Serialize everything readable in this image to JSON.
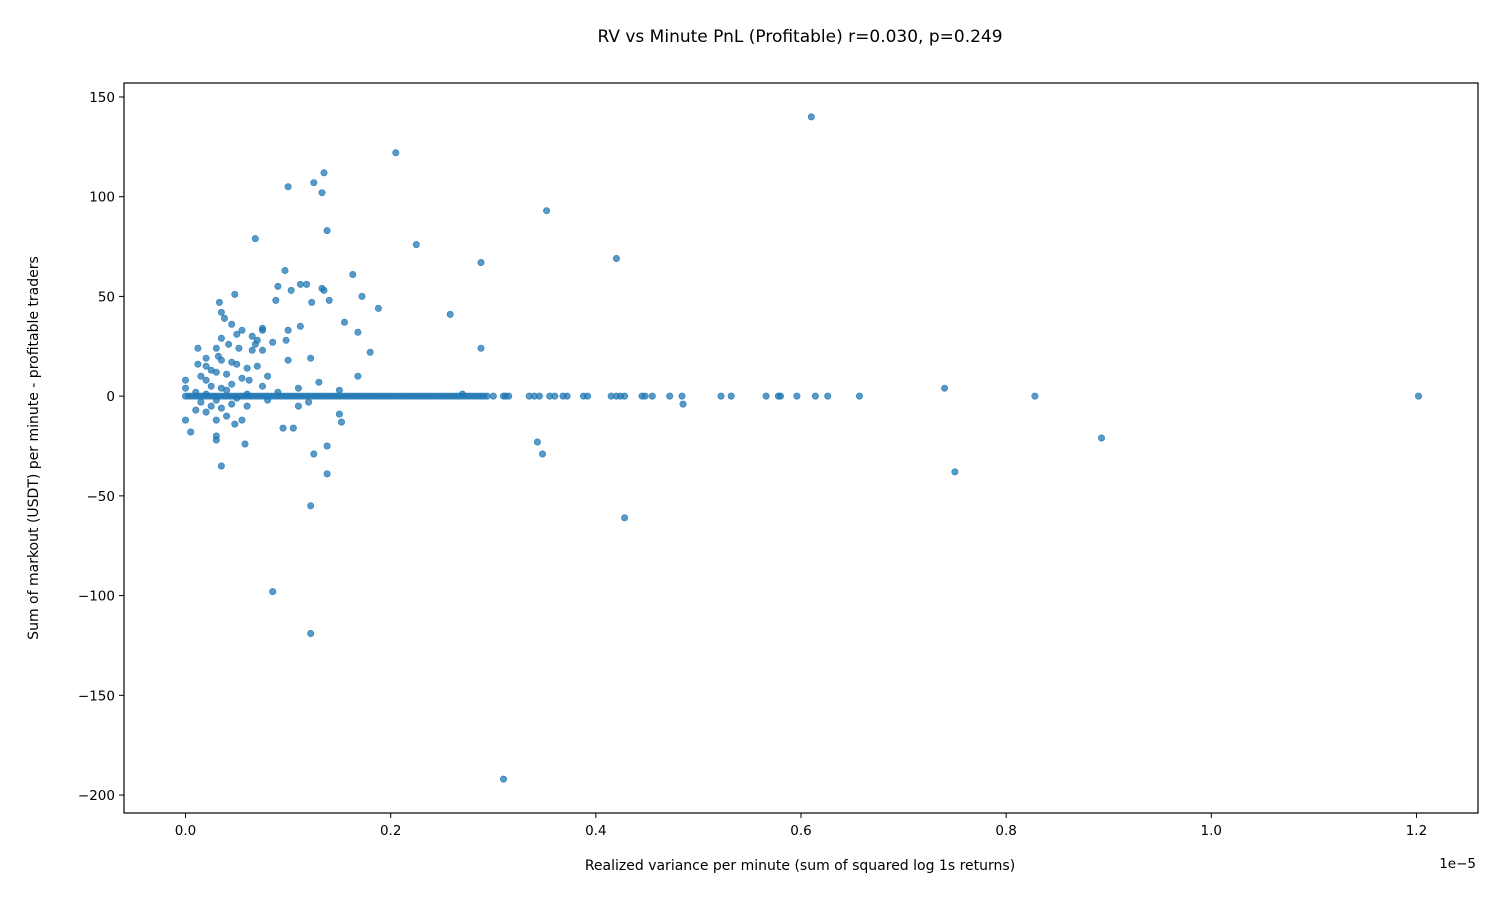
{
  "chart_data": {
    "type": "scatter",
    "title": "RV vs Minute PnL (Profitable) r=0.030, p=0.249",
    "xlabel": "Realized variance per minute (sum of squared log 1s returns)",
    "ylabel": "Sum of markout (USDT) per minute - profitable traders",
    "x_offset_text": "1e−5",
    "xlim": [
      -0.06,
      1.26
    ],
    "ylim": [
      -209,
      157
    ],
    "x_ticks": [
      0.0,
      0.2,
      0.4,
      0.6,
      0.8,
      1.0,
      1.2
    ],
    "x_tick_labels": [
      "0.0",
      "0.2",
      "0.4",
      "0.6",
      "0.8",
      "1.0",
      "1.2"
    ],
    "y_ticks": [
      150,
      100,
      50,
      0,
      -50,
      -100,
      -150,
      -200
    ],
    "y_tick_labels": [
      "150",
      "100",
      "50",
      "0",
      "−50",
      "−100",
      "−150",
      "−200"
    ],
    "grid": false,
    "point_color": "#1f77b4",
    "point_alpha": 0.75,
    "series": [
      {
        "points": [
          [
            0.61,
            140
          ],
          [
            0.205,
            122
          ],
          [
            0.135,
            112
          ],
          [
            0.125,
            107
          ],
          [
            0.1,
            105
          ],
          [
            0.133,
            102
          ],
          [
            0.352,
            93
          ],
          [
            0.138,
            83
          ],
          [
            0.068,
            79
          ],
          [
            0.225,
            76
          ],
          [
            0.42,
            69
          ],
          [
            0.288,
            67
          ],
          [
            0.097,
            63
          ],
          [
            0.163,
            61
          ],
          [
            0.112,
            56
          ],
          [
            0.118,
            56
          ],
          [
            0.09,
            55
          ],
          [
            0.133,
            54
          ],
          [
            0.135,
            53
          ],
          [
            0.103,
            53
          ],
          [
            0.048,
            51
          ],
          [
            0.172,
            50
          ],
          [
            0.088,
            48
          ],
          [
            0.033,
            47
          ],
          [
            0.123,
            47
          ],
          [
            0.14,
            48
          ],
          [
            0.188,
            44
          ],
          [
            0.035,
            42
          ],
          [
            0.258,
            41
          ],
          [
            0.038,
            39
          ],
          [
            0.155,
            37
          ],
          [
            0.045,
            36
          ],
          [
            0.112,
            35
          ],
          [
            0.075,
            34
          ],
          [
            0.075,
            33
          ],
          [
            0.055,
            33
          ],
          [
            0.168,
            32
          ],
          [
            0.1,
            33
          ],
          [
            0.065,
            30
          ],
          [
            0.05,
            31
          ],
          [
            0.035,
            29
          ],
          [
            0.07,
            28
          ],
          [
            0.098,
            28
          ],
          [
            0.042,
            26
          ],
          [
            0.068,
            26
          ],
          [
            0.085,
            27
          ],
          [
            0.065,
            23
          ],
          [
            0.03,
            24
          ],
          [
            0.012,
            24
          ],
          [
            0.052,
            24
          ],
          [
            0.075,
            23
          ],
          [
            0.288,
            24
          ],
          [
            0.18,
            22
          ],
          [
            0.032,
            20
          ],
          [
            0.02,
            19
          ],
          [
            0.1,
            18
          ],
          [
            0.035,
            18
          ],
          [
            0.122,
            19
          ],
          [
            0.045,
            17
          ],
          [
            0.05,
            16
          ],
          [
            0.07,
            15
          ],
          [
            0.012,
            16
          ],
          [
            0.02,
            15
          ],
          [
            0.06,
            14
          ],
          [
            0.025,
            13
          ],
          [
            0.03,
            12
          ],
          [
            0.04,
            11
          ],
          [
            0.015,
            10
          ],
          [
            0.08,
            10
          ],
          [
            0.168,
            10
          ],
          [
            0.055,
            9
          ],
          [
            0.02,
            8
          ],
          [
            0.0,
            8
          ],
          [
            0.062,
            8
          ],
          [
            0.13,
            7
          ],
          [
            0.045,
            6
          ],
          [
            0.025,
            5
          ],
          [
            0.035,
            4
          ],
          [
            0.0,
            4
          ],
          [
            0.075,
            5
          ],
          [
            0.11,
            4
          ],
          [
            0.74,
            4
          ],
          [
            0.27,
            1
          ],
          [
            0.01,
            2
          ],
          [
            0.04,
            3
          ],
          [
            0.09,
            2
          ],
          [
            0.15,
            3
          ],
          [
            0.06,
            1
          ],
          [
            0.02,
            1
          ],
          [
            0.05,
            -1
          ],
          [
            0.03,
            -2
          ],
          [
            0.015,
            -3
          ],
          [
            0.08,
            -2
          ],
          [
            0.12,
            -3
          ],
          [
            0.045,
            -4
          ],
          [
            0.025,
            -5
          ],
          [
            0.06,
            -5
          ],
          [
            0.11,
            -5
          ],
          [
            0.485,
            -4
          ],
          [
            0.035,
            -6
          ],
          [
            0.01,
            -7
          ],
          [
            0.02,
            -8
          ],
          [
            0.15,
            -9
          ],
          [
            0.04,
            -10
          ],
          [
            0.055,
            -12
          ],
          [
            0.03,
            -12
          ],
          [
            0.152,
            -13
          ],
          [
            0.048,
            -14
          ],
          [
            0.0,
            -12
          ],
          [
            0.095,
            -16
          ],
          [
            0.105,
            -16
          ],
          [
            0.005,
            -18
          ],
          [
            0.03,
            -20
          ],
          [
            0.03,
            -22
          ],
          [
            0.343,
            -23
          ],
          [
            0.058,
            -24
          ],
          [
            0.138,
            -25
          ],
          [
            0.125,
            -29
          ],
          [
            0.348,
            -29
          ],
          [
            0.035,
            -35
          ],
          [
            0.138,
            -39
          ],
          [
            0.75,
            -38
          ],
          [
            0.893,
            -21
          ],
          [
            0.122,
            -55
          ],
          [
            0.428,
            -61
          ],
          [
            0.085,
            -98
          ],
          [
            0.122,
            -119
          ],
          [
            0.31,
            -192
          ],
          [
            0.0,
            0
          ],
          [
            0.003,
            0
          ],
          [
            0.006,
            0
          ],
          [
            0.009,
            0
          ],
          [
            0.012,
            0
          ],
          [
            0.015,
            0
          ],
          [
            0.018,
            0
          ],
          [
            0.021,
            0
          ],
          [
            0.024,
            0
          ],
          [
            0.027,
            0
          ],
          [
            0.03,
            0
          ],
          [
            0.033,
            0
          ],
          [
            0.036,
            0
          ],
          [
            0.039,
            0
          ],
          [
            0.042,
            0
          ],
          [
            0.045,
            0
          ],
          [
            0.048,
            0
          ],
          [
            0.051,
            0
          ],
          [
            0.054,
            0
          ],
          [
            0.057,
            0
          ],
          [
            0.06,
            0
          ],
          [
            0.063,
            0
          ],
          [
            0.066,
            0
          ],
          [
            0.069,
            0
          ],
          [
            0.072,
            0
          ],
          [
            0.075,
            0
          ],
          [
            0.078,
            0
          ],
          [
            0.081,
            0
          ],
          [
            0.084,
            0
          ],
          [
            0.087,
            0
          ],
          [
            0.09,
            0
          ],
          [
            0.093,
            0
          ],
          [
            0.096,
            0
          ],
          [
            0.099,
            0
          ],
          [
            0.102,
            0
          ],
          [
            0.105,
            0
          ],
          [
            0.108,
            0
          ],
          [
            0.111,
            0
          ],
          [
            0.114,
            0
          ],
          [
            0.117,
            0
          ],
          [
            0.12,
            0
          ],
          [
            0.123,
            0
          ],
          [
            0.126,
            0
          ],
          [
            0.129,
            0
          ],
          [
            0.132,
            0
          ],
          [
            0.135,
            0
          ],
          [
            0.138,
            0
          ],
          [
            0.141,
            0
          ],
          [
            0.144,
            0
          ],
          [
            0.147,
            0
          ],
          [
            0.15,
            0
          ],
          [
            0.153,
            0
          ],
          [
            0.156,
            0
          ],
          [
            0.159,
            0
          ],
          [
            0.162,
            0
          ],
          [
            0.165,
            0
          ],
          [
            0.168,
            0
          ],
          [
            0.171,
            0
          ],
          [
            0.174,
            0
          ],
          [
            0.177,
            0
          ],
          [
            0.18,
            0
          ],
          [
            0.183,
            0
          ],
          [
            0.186,
            0
          ],
          [
            0.189,
            0
          ],
          [
            0.192,
            0
          ],
          [
            0.195,
            0
          ],
          [
            0.198,
            0
          ],
          [
            0.201,
            0
          ],
          [
            0.204,
            0
          ],
          [
            0.207,
            0
          ],
          [
            0.21,
            0
          ],
          [
            0.213,
            0
          ],
          [
            0.216,
            0
          ],
          [
            0.219,
            0
          ],
          [
            0.222,
            0
          ],
          [
            0.225,
            0
          ],
          [
            0.228,
            0
          ],
          [
            0.231,
            0
          ],
          [
            0.234,
            0
          ],
          [
            0.237,
            0
          ],
          [
            0.24,
            0
          ],
          [
            0.243,
            0
          ],
          [
            0.246,
            0
          ],
          [
            0.249,
            0
          ],
          [
            0.252,
            0
          ],
          [
            0.255,
            0
          ],
          [
            0.258,
            0
          ],
          [
            0.261,
            0
          ],
          [
            0.264,
            0
          ],
          [
            0.267,
            0
          ],
          [
            0.27,
            0
          ],
          [
            0.273,
            0
          ],
          [
            0.276,
            0
          ],
          [
            0.279,
            0
          ],
          [
            0.282,
            0
          ],
          [
            0.285,
            0
          ],
          [
            0.288,
            0
          ],
          [
            0.291,
            0
          ],
          [
            0.294,
            0
          ],
          [
            0.3,
            0
          ],
          [
            0.31,
            0
          ],
          [
            0.312,
            0
          ],
          [
            0.315,
            0
          ],
          [
            0.335,
            0
          ],
          [
            0.34,
            0
          ],
          [
            0.345,
            0
          ],
          [
            0.355,
            0
          ],
          [
            0.36,
            0
          ],
          [
            0.368,
            0
          ],
          [
            0.372,
            0
          ],
          [
            0.388,
            0
          ],
          [
            0.392,
            0
          ],
          [
            0.415,
            0
          ],
          [
            0.42,
            0
          ],
          [
            0.424,
            0
          ],
          [
            0.428,
            0
          ],
          [
            0.445,
            0
          ],
          [
            0.448,
            0
          ],
          [
            0.455,
            0
          ],
          [
            0.472,
            0
          ],
          [
            0.484,
            0
          ],
          [
            0.522,
            0
          ],
          [
            0.532,
            0
          ],
          [
            0.566,
            0
          ],
          [
            0.578,
            0
          ],
          [
            0.58,
            0
          ],
          [
            0.596,
            0
          ],
          [
            0.614,
            0
          ],
          [
            0.626,
            0
          ],
          [
            0.657,
            0
          ],
          [
            0.828,
            0
          ],
          [
            1.202,
            0
          ]
        ]
      }
    ]
  }
}
